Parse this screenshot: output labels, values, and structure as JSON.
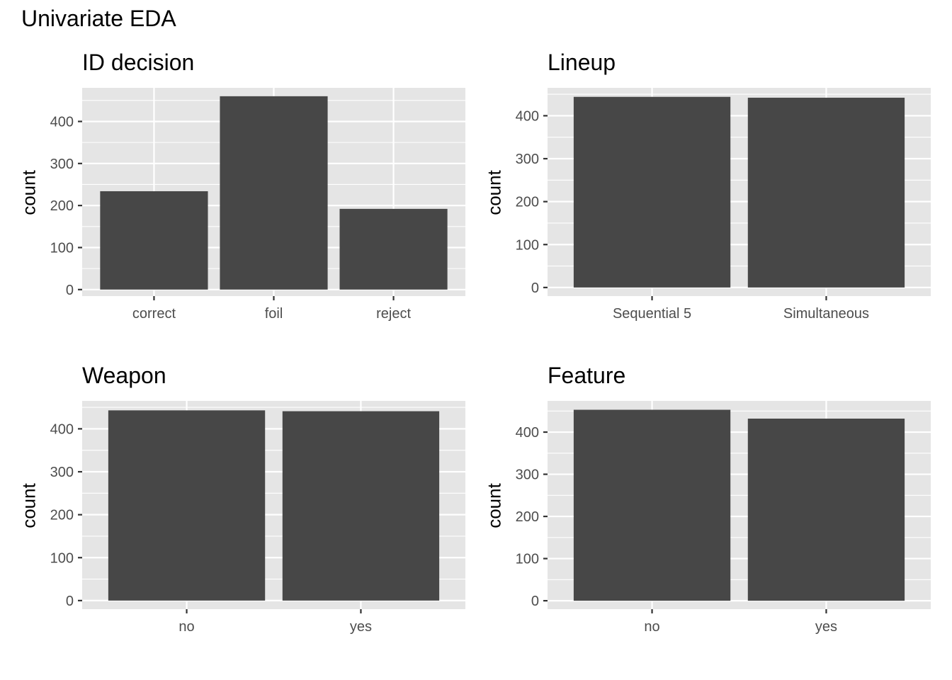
{
  "page": {
    "title": "Univariate EDA"
  },
  "style": {
    "panel_bg": "#e5e5e5",
    "grid": "#ffffff",
    "bar_fill": "#474747",
    "tick_text": "#4d4d4d",
    "axis_text": "#000000"
  },
  "chart_data": [
    {
      "type": "bar",
      "title": "ID decision",
      "xlabel": "",
      "ylabel": "count",
      "categories": [
        "correct",
        "foil",
        "reject"
      ],
      "values": [
        234,
        460,
        192
      ],
      "ylim": [
        -15.5,
        480
      ],
      "yticks": [
        0,
        100,
        200,
        300,
        400
      ],
      "grid": true,
      "legend": "none"
    },
    {
      "type": "bar",
      "title": "Lineup",
      "xlabel": "",
      "ylabel": "count",
      "categories": [
        "Sequential 5",
        "Simultaneous"
      ],
      "values": [
        444,
        442
      ],
      "ylim": [
        -20,
        465
      ],
      "yticks": [
        0,
        100,
        200,
        300,
        400
      ],
      "grid": true,
      "legend": "none"
    },
    {
      "type": "bar",
      "title": "Weapon",
      "xlabel": "",
      "ylabel": "count",
      "categories": [
        "no",
        "yes"
      ],
      "values": [
        443,
        441
      ],
      "ylim": [
        -20,
        465
      ],
      "yticks": [
        0,
        100,
        200,
        300,
        400
      ],
      "grid": true,
      "legend": "none"
    },
    {
      "type": "bar",
      "title": "Feature",
      "xlabel": "",
      "ylabel": "count",
      "categories": [
        "no",
        "yes"
      ],
      "values": [
        453,
        432
      ],
      "ylim": [
        -20,
        474
      ],
      "yticks": [
        0,
        100,
        200,
        300,
        400
      ],
      "grid": true,
      "legend": "none"
    }
  ]
}
